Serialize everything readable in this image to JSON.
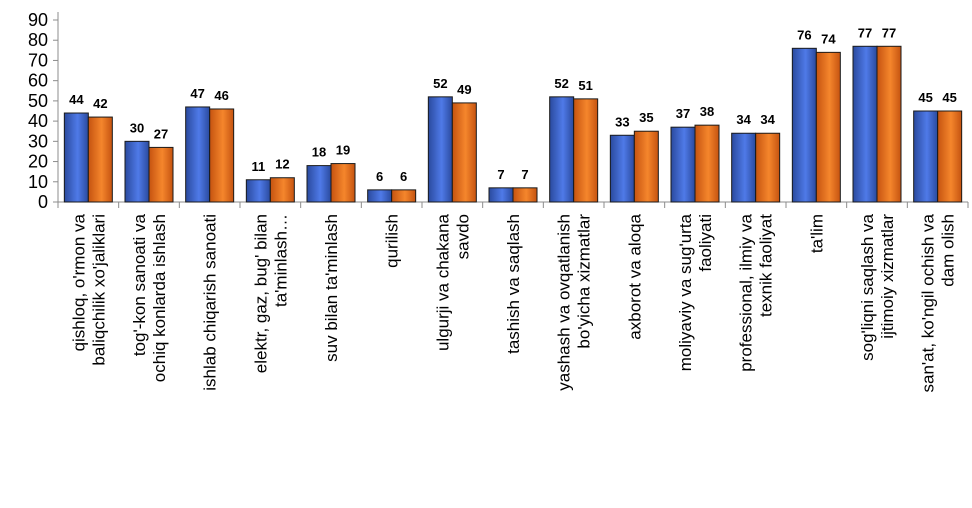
{
  "chart_data": {
    "type": "bar",
    "title": "",
    "xlabel": "",
    "ylabel": "",
    "ylim": [
      0,
      90
    ],
    "yticks": [
      0,
      10,
      20,
      30,
      40,
      50,
      60,
      70,
      80,
      90
    ],
    "grid": false,
    "legend": "none",
    "colors": [
      "#3a5fcd",
      "#e8701d"
    ],
    "categories": [
      [
        "qishloq, o'rmon va",
        "baliqchilik xo'jaliklari"
      ],
      [
        "tog'-kon sanoati  va",
        "ochiq konlarda ishlash"
      ],
      [
        "ishlab chiqarish sanoati"
      ],
      [
        "elektr,  gaz, bug' bilan",
        "ta'minlash…"
      ],
      [
        "suv bilan ta'minlash"
      ],
      [
        "qurilish"
      ],
      [
        "ulgurji va chakana",
        "savdo"
      ],
      [
        "tashish va saqlash"
      ],
      [
        "yashash  va ovqatlanish",
        "bo'yicha xizmatlar"
      ],
      [
        "axborot va aloqa"
      ],
      [
        "moliyaviy va sug'urta",
        "faoliyati"
      ],
      [
        "professional, ilmiy va",
        "texnik faoliyat"
      ],
      [
        "ta'lim"
      ],
      [
        "sog'liqni saqlash va",
        "ijtimoiy xizmatlar"
      ],
      [
        "san'at, ko'ngil ochish va",
        "dam olish"
      ]
    ],
    "series": [
      {
        "values": [
          44,
          30,
          47,
          11,
          18,
          6,
          52,
          7,
          52,
          33,
          37,
          34,
          76,
          77,
          45
        ]
      },
      {
        "values": [
          42,
          27,
          46,
          12,
          19,
          6,
          49,
          7,
          51,
          35,
          38,
          34,
          74,
          77,
          45
        ]
      }
    ]
  }
}
